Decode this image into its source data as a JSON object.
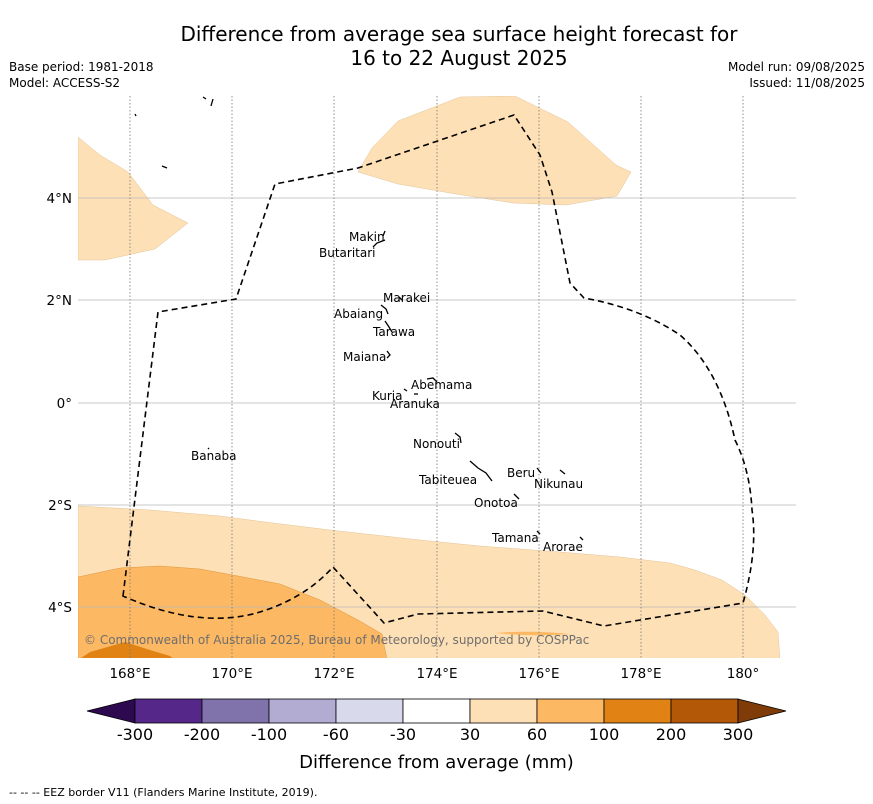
{
  "title_line1": "Difference from average sea surface height forecast for",
  "title_line2": "16 to 22 August 2025",
  "base_period": "Base period: 1981-2018",
  "model": "Model: ACCESS-S2",
  "model_run": "Model run: 09/08/2025",
  "issued": "Issued: 11/08/2025",
  "copyright": "© Commonwealth of Australia 2025, Bureau of Meteorology, supported by COSPPac",
  "colorbar_label": "Difference from average (mm)",
  "footer_note": "--  --  -- EEZ border V11 (Flanders Marine Institute, 2019).",
  "x_ticks": [
    "168°E",
    "170°E",
    "172°E",
    "174°E",
    "176°E",
    "178°E",
    "180°"
  ],
  "y_ticks": [
    "4°N",
    "2°N",
    "0°",
    "2°S",
    "4°S"
  ],
  "colorbar_ticks": [
    "-300",
    "-200",
    "-100",
    "-60",
    "-30",
    "30",
    "60",
    "100",
    "200",
    "300"
  ],
  "colorbar_colors": {
    "below_min": "#2d0a4f",
    "bins": [
      "#542788",
      "#8073ac",
      "#b2abd2",
      "#d8daeb",
      "#ffffff",
      "#fee0b6",
      "#fdb863",
      "#e08214",
      "#b35806"
    ],
    "above_max": "#7f3b08"
  },
  "island_labels": [
    "Makin",
    "Butaritari",
    "Marakei",
    "Abaiang",
    "Tarawa",
    "Maiana",
    "Abemama",
    "Kuria",
    "Aranuka",
    "Nonouti",
    "Banaba",
    "Tabiteuea",
    "Beru",
    "Nikunau",
    "Onotoa",
    "Tamana",
    "Arorae"
  ]
}
